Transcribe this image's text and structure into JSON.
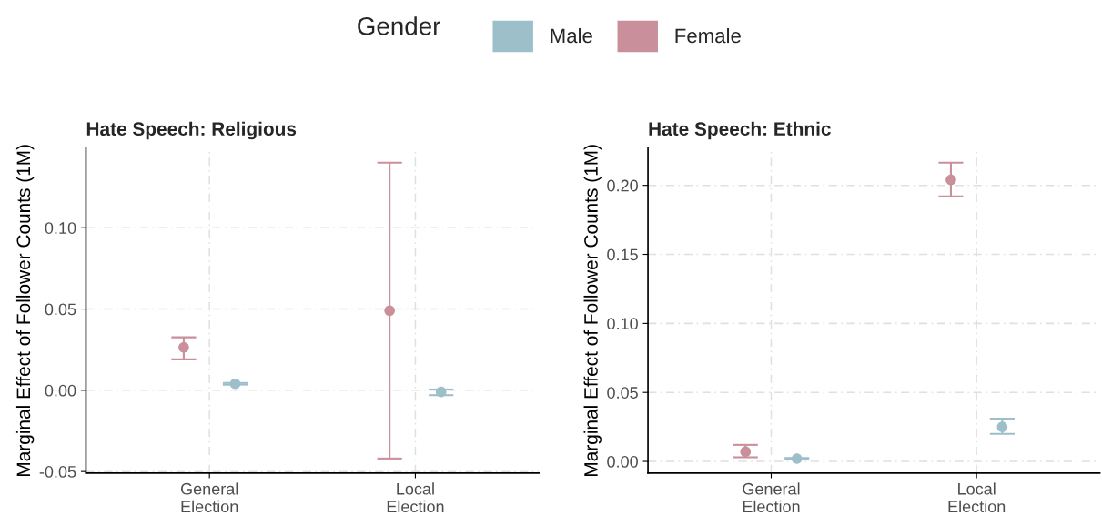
{
  "chart_data": [
    {
      "type": "scatter",
      "title": "Hate Speech: Religious",
      "ylabel": "Marginal Effect of Follower Counts (1M)",
      "legend_title": "Gender",
      "legend": "top",
      "grid": true,
      "marker": "circle",
      "categories": [
        "General\nElection",
        "Local\nElection"
      ],
      "ylim": [
        -0.051,
        0.149
      ],
      "yticks": [
        {
          "value": -0.05,
          "label": "-0.05"
        },
        {
          "value": 0.0,
          "label": "0.00"
        },
        {
          "value": 0.05,
          "label": "0.05"
        },
        {
          "value": 0.1,
          "label": "0.10"
        }
      ],
      "series": [
        {
          "name": "Male",
          "color": "#9dbfca",
          "values": [
            0.004,
            -0.001
          ],
          "errors": [
            [
              0.0035,
              0.0045
            ],
            [
              -0.003,
              0.0005
            ]
          ]
        },
        {
          "name": "Female",
          "color": "#c98f9a",
          "values": [
            0.0264,
            0.049
          ],
          "errors": [
            [
              0.019,
              0.0326
            ],
            [
              -0.042,
              0.14
            ]
          ]
        }
      ]
    },
    {
      "type": "scatter",
      "title": "Hate Speech: Ethnic",
      "ylabel": "Marginal Effect of Follower Counts (1M)",
      "grid": true,
      "marker": "circle",
      "categories": [
        "General\nElection",
        "Local\nElection"
      ],
      "ylim": [
        -0.0085,
        0.227
      ],
      "yticks": [
        {
          "value": 0.0,
          "label": "0.00"
        },
        {
          "value": 0.05,
          "label": "0.05"
        },
        {
          "value": 0.1,
          "label": "0.10"
        },
        {
          "value": 0.15,
          "label": "0.15"
        },
        {
          "value": 0.2,
          "label": "0.20"
        }
      ],
      "series": [
        {
          "name": "Male",
          "color": "#9dbfca",
          "values": [
            0.002,
            0.025
          ],
          "errors": [
            [
              0.0015,
              0.0025
            ],
            [
              0.02,
              0.031
            ]
          ]
        },
        {
          "name": "Female",
          "color": "#c98f9a",
          "values": [
            0.007,
            0.204
          ],
          "errors": [
            [
              0.003,
              0.012
            ],
            [
              0.192,
              0.2164
            ]
          ]
        }
      ]
    }
  ]
}
